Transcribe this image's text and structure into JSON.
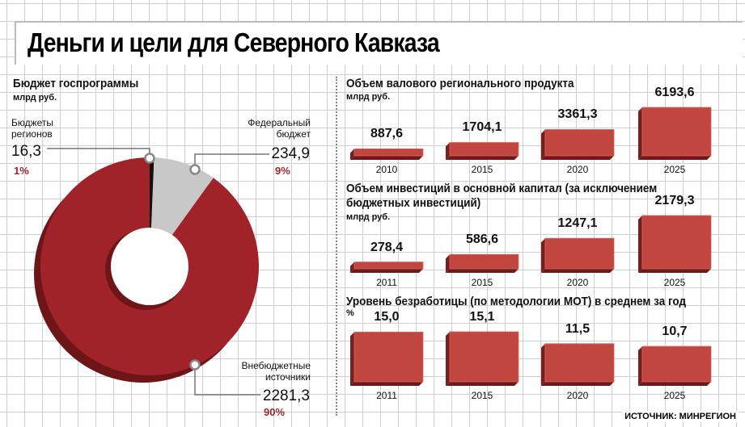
{
  "title": "Деньги и цели для Северного Кавказа",
  "source": "ИСТОЧНИК: МИНРЕГИОН",
  "colors": {
    "red": "#a0232a",
    "bar": "#c0463f",
    "gray": "#c8c8c8"
  },
  "chart_data": [
    {
      "type": "pie",
      "title": "Бюджет госпрограммы",
      "unit": "млрд руб.",
      "slices": [
        {
          "label": "Бюджеты регионов",
          "value": 16.3,
          "value_text": "16,3",
          "percent": "1%"
        },
        {
          "label": "Федеральный бюджет",
          "value": 234.9,
          "value_text": "234,9",
          "percent": "9%"
        },
        {
          "label": "Внебюджетные источники",
          "value": 2281.3,
          "value_text": "2281,3",
          "percent": "90%"
        }
      ]
    },
    {
      "type": "bar",
      "title": "Объем валового регионального продукта",
      "unit": "млрд руб.",
      "categories": [
        "2010",
        "2015",
        "2020",
        "2025"
      ],
      "values": [
        887.6,
        1704.1,
        3361.3,
        6193.6
      ],
      "labels": [
        "887,6",
        "1704,1",
        "3361,3",
        "6193,6"
      ]
    },
    {
      "type": "bar",
      "title": "Объем инвестиций в основной капитал (за исключением",
      "title2": "бюджетных инвестиций)",
      "unit": "млрд руб.",
      "categories": [
        "2011",
        "2015",
        "2020",
        "2025"
      ],
      "values": [
        278.4,
        586.6,
        1247.1,
        2179.3
      ],
      "labels": [
        "278,4",
        "586,6",
        "1247,1",
        "2179,3"
      ]
    },
    {
      "type": "bar",
      "title": "Уровень безработицы (по методологии МОТ) в среднем за год",
      "unit": "%",
      "categories": [
        "2011",
        "2015",
        "2020",
        "2025"
      ],
      "values": [
        15.0,
        15.1,
        11.5,
        10.7
      ],
      "labels": [
        "15,0",
        "15,1",
        "11,5",
        "10,7"
      ]
    }
  ]
}
